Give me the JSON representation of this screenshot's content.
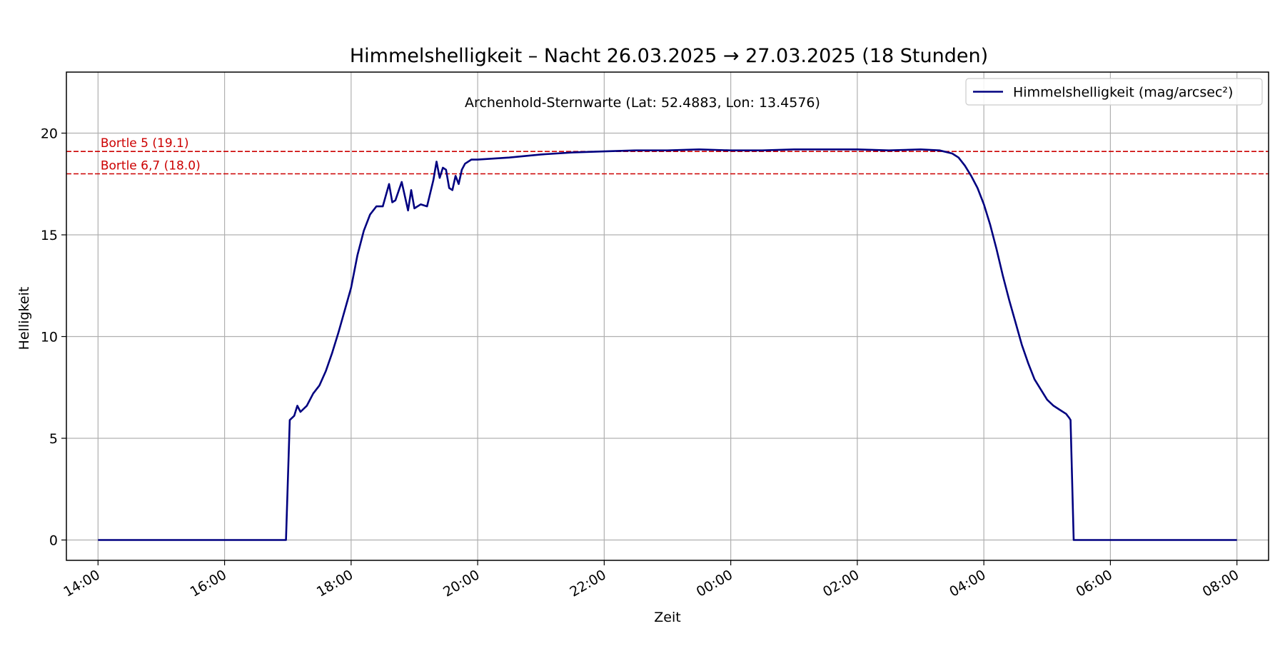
{
  "chart_data": {
    "type": "line",
    "title": "Himmelshelligkeit – Nacht 26.03.2025 → 27.03.2025 (18 Stunden)",
    "subtitle": "Archenhold-Sternwarte (Lat: 52.4883, Lon: 13.4576)",
    "xlabel": "Zeit",
    "ylabel": "Helligkeit",
    "x_unit": "hours",
    "x_range": [
      "13:30",
      "08:30"
    ],
    "xlim": [
      13.5,
      32.5
    ],
    "ylim": [
      -1,
      23
    ],
    "x_ticks": [
      {
        "x": 14,
        "label": "14:00"
      },
      {
        "x": 16,
        "label": "16:00"
      },
      {
        "x": 18,
        "label": "18:00"
      },
      {
        "x": 20,
        "label": "20:00"
      },
      {
        "x": 22,
        "label": "22:00"
      },
      {
        "x": 24,
        "label": "00:00"
      },
      {
        "x": 26,
        "label": "02:00"
      },
      {
        "x": 28,
        "label": "04:00"
      },
      {
        "x": 30,
        "label": "06:00"
      },
      {
        "x": 32,
        "label": "08:00"
      }
    ],
    "y_ticks": [
      {
        "y": 0,
        "label": "0"
      },
      {
        "y": 5,
        "label": "5"
      },
      {
        "y": 10,
        "label": "10"
      },
      {
        "y": 15,
        "label": "15"
      },
      {
        "y": 20,
        "label": "20"
      }
    ],
    "grid": true,
    "legend_position": "top-right",
    "reference_lines": [
      {
        "y": 19.1,
        "label": "Bortle 5 (19.1)",
        "color": "#cc0000",
        "style": "dashed"
      },
      {
        "y": 18.0,
        "label": "Bortle 6,7 (18.0)",
        "color": "#cc0000",
        "style": "dashed"
      }
    ],
    "series": [
      {
        "name": "Himmelshelligkeit (mag/arcsec²)",
        "color": "#000080",
        "points": [
          [
            14.0,
            0
          ],
          [
            15.0,
            0
          ],
          [
            16.0,
            0
          ],
          [
            16.9,
            0
          ],
          [
            16.97,
            0
          ],
          [
            17.03,
            5.9
          ],
          [
            17.1,
            6.1
          ],
          [
            17.15,
            6.6
          ],
          [
            17.2,
            6.3
          ],
          [
            17.3,
            6.6
          ],
          [
            17.4,
            7.2
          ],
          [
            17.5,
            7.6
          ],
          [
            17.6,
            8.3
          ],
          [
            17.7,
            9.2
          ],
          [
            17.8,
            10.2
          ],
          [
            17.9,
            11.3
          ],
          [
            18.0,
            12.4
          ],
          [
            18.1,
            14.0
          ],
          [
            18.2,
            15.2
          ],
          [
            18.3,
            16.0
          ],
          [
            18.4,
            16.4
          ],
          [
            18.5,
            16.4
          ],
          [
            18.6,
            17.5
          ],
          [
            18.65,
            16.6
          ],
          [
            18.7,
            16.7
          ],
          [
            18.8,
            17.6
          ],
          [
            18.9,
            16.2
          ],
          [
            18.95,
            17.2
          ],
          [
            19.0,
            16.3
          ],
          [
            19.1,
            16.5
          ],
          [
            19.2,
            16.4
          ],
          [
            19.3,
            17.7
          ],
          [
            19.35,
            18.6
          ],
          [
            19.4,
            17.8
          ],
          [
            19.45,
            18.3
          ],
          [
            19.5,
            18.2
          ],
          [
            19.55,
            17.3
          ],
          [
            19.6,
            17.2
          ],
          [
            19.65,
            17.9
          ],
          [
            19.7,
            17.5
          ],
          [
            19.75,
            18.2
          ],
          [
            19.8,
            18.5
          ],
          [
            19.9,
            18.7
          ],
          [
            20.0,
            18.7
          ],
          [
            20.5,
            18.8
          ],
          [
            21.0,
            18.95
          ],
          [
            21.5,
            19.05
          ],
          [
            22.0,
            19.1
          ],
          [
            22.5,
            19.15
          ],
          [
            23.0,
            19.15
          ],
          [
            23.5,
            19.2
          ],
          [
            24.0,
            19.15
          ],
          [
            24.5,
            19.15
          ],
          [
            25.0,
            19.2
          ],
          [
            25.5,
            19.2
          ],
          [
            26.0,
            19.2
          ],
          [
            26.5,
            19.15
          ],
          [
            27.0,
            19.2
          ],
          [
            27.3,
            19.15
          ],
          [
            27.5,
            19.0
          ],
          [
            27.6,
            18.8
          ],
          [
            27.7,
            18.4
          ],
          [
            27.8,
            17.9
          ],
          [
            27.9,
            17.3
          ],
          [
            28.0,
            16.5
          ],
          [
            28.1,
            15.5
          ],
          [
            28.2,
            14.3
          ],
          [
            28.3,
            13.0
          ],
          [
            28.4,
            11.8
          ],
          [
            28.5,
            10.7
          ],
          [
            28.6,
            9.6
          ],
          [
            28.7,
            8.7
          ],
          [
            28.8,
            7.9
          ],
          [
            28.9,
            7.4
          ],
          [
            29.0,
            6.9
          ],
          [
            29.1,
            6.6
          ],
          [
            29.2,
            6.4
          ],
          [
            29.3,
            6.2
          ],
          [
            29.35,
            6.0
          ],
          [
            29.37,
            5.9
          ],
          [
            29.42,
            0
          ],
          [
            30.0,
            0
          ],
          [
            31.0,
            0
          ],
          [
            32.0,
            0
          ]
        ]
      }
    ]
  }
}
